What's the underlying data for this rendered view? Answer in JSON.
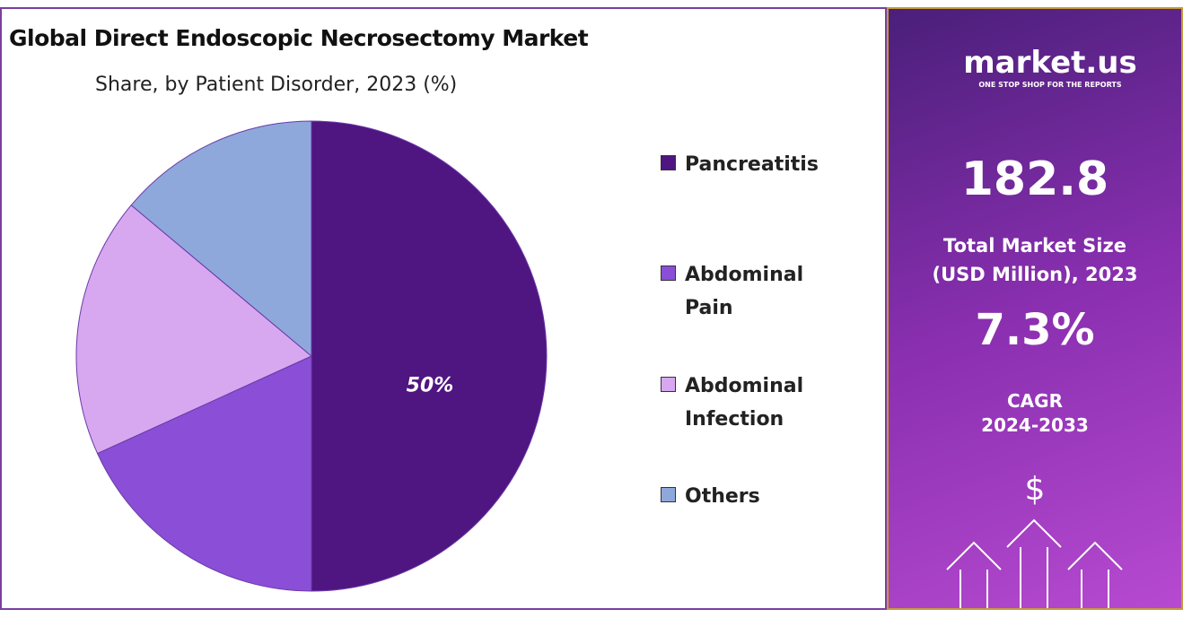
{
  "chart_data": {
    "type": "pie",
    "title": "Global Direct Endoscopic Necrosectomy Market",
    "subtitle": "Share, by Patient Disorder, 2023 (%)",
    "categories": [
      "Pancreatitis",
      "Abdominal Pain",
      "Abdominal Infection",
      "Others"
    ],
    "values": [
      50,
      18.2,
      17.9,
      13.9
    ],
    "value_labels": [
      "50%",
      null,
      null,
      null
    ],
    "colors": [
      "#4f1580",
      "#8a4fd6",
      "#d7a8f0",
      "#8fa8dc"
    ],
    "legend": "right"
  },
  "sidebar": {
    "brand": "market.us",
    "tagline": "ONE STOP SHOP FOR THE REPORTS",
    "market_size": "182.8",
    "market_size_label": "Total Market Size (USD Million), 2023",
    "cagr": "7.3%",
    "cagr_label": "CAGR",
    "cagr_period": "2024-2033",
    "currency_symbol": "$"
  }
}
